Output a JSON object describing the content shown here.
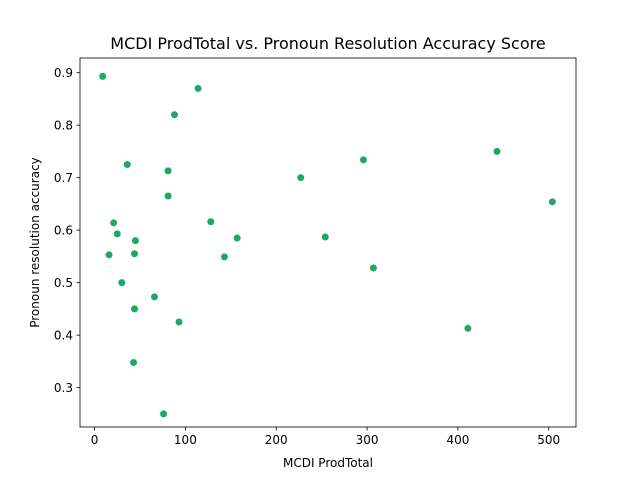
{
  "chart_data": {
    "type": "scatter",
    "title": "MCDI ProdTotal vs. Pronoun Resolution Accuracy Score",
    "xlabel": "MCDI ProdTotal",
    "ylabel": "Pronoun resolution accuracy",
    "xlim": [
      -16,
      530
    ],
    "ylim": [
      0.225,
      0.928
    ],
    "xticks": [
      0,
      100,
      200,
      300,
      400,
      500
    ],
    "yticks": [
      0.3,
      0.4,
      0.5,
      0.6,
      0.7,
      0.8,
      0.9
    ],
    "grid": false,
    "marker_color": "#1aab60",
    "points": [
      {
        "x": 9,
        "y": 0.893
      },
      {
        "x": 114,
        "y": 0.87
      },
      {
        "x": 88,
        "y": 0.82
      },
      {
        "x": 36,
        "y": 0.725
      },
      {
        "x": 81,
        "y": 0.713
      },
      {
        "x": 81,
        "y": 0.665
      },
      {
        "x": 21,
        "y": 0.614
      },
      {
        "x": 25,
        "y": 0.593
      },
      {
        "x": 45,
        "y": 0.58
      },
      {
        "x": 16,
        "y": 0.553
      },
      {
        "x": 44,
        "y": 0.555
      },
      {
        "x": 30,
        "y": 0.5
      },
      {
        "x": 66,
        "y": 0.473
      },
      {
        "x": 44,
        "y": 0.45
      },
      {
        "x": 93,
        "y": 0.425
      },
      {
        "x": 43,
        "y": 0.348
      },
      {
        "x": 76,
        "y": 0.25
      },
      {
        "x": 128,
        "y": 0.616
      },
      {
        "x": 143,
        "y": 0.549
      },
      {
        "x": 157,
        "y": 0.585
      },
      {
        "x": 227,
        "y": 0.7
      },
      {
        "x": 254,
        "y": 0.587
      },
      {
        "x": 296,
        "y": 0.734
      },
      {
        "x": 307,
        "y": 0.528
      },
      {
        "x": 411,
        "y": 0.413
      },
      {
        "x": 443,
        "y": 0.75
      },
      {
        "x": 504,
        "y": 0.654
      }
    ]
  }
}
